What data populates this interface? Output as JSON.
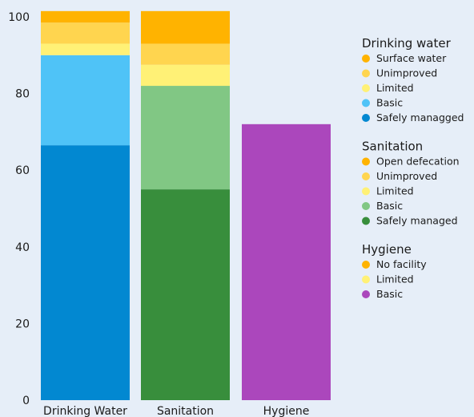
{
  "chart_data": {
    "type": "bar",
    "stacked": true,
    "categories": [
      "Drinking Water",
      "Sanitation",
      "Hygiene"
    ],
    "ylim": [
      0,
      100
    ],
    "yticks": [
      0,
      20,
      40,
      60,
      80,
      100
    ],
    "grid": false,
    "legend_placement": "right",
    "groups": [
      {
        "name": "Drinking water",
        "category_index": 0,
        "segments": [
          {
            "name": "Safely managged",
            "value": 66.5,
            "color": "#0288d1"
          },
          {
            "name": "Basic",
            "value": 23.5,
            "color": "#4fc3f7"
          },
          {
            "name": "Limited",
            "value": 3,
            "color": "#fff176"
          },
          {
            "name": "Unimproved",
            "value": 5.5,
            "color": "#ffd54f"
          },
          {
            "name": "Surface water",
            "value": 3,
            "color": "#ffb300"
          }
        ]
      },
      {
        "name": "Sanitation",
        "category_index": 1,
        "segments": [
          {
            "name": "Safely managed",
            "value": 55,
            "color": "#388e3c"
          },
          {
            "name": "Basic",
            "value": 27,
            "color": "#81c784"
          },
          {
            "name": "Limited",
            "value": 5.5,
            "color": "#fff176"
          },
          {
            "name": "Unimproved",
            "value": 5.5,
            "color": "#ffd54f"
          },
          {
            "name": "Open defecation",
            "value": 8.5,
            "color": "#ffb300"
          }
        ]
      },
      {
        "name": "Hygiene",
        "category_index": 2,
        "segments": [
          {
            "name": "Basic",
            "value": 72,
            "color": "#ab47bc"
          },
          {
            "name": "Limited",
            "value": 0,
            "color": "#fff176"
          },
          {
            "name": "No facility",
            "value": 0,
            "color": "#ffb300"
          }
        ]
      }
    ]
  }
}
